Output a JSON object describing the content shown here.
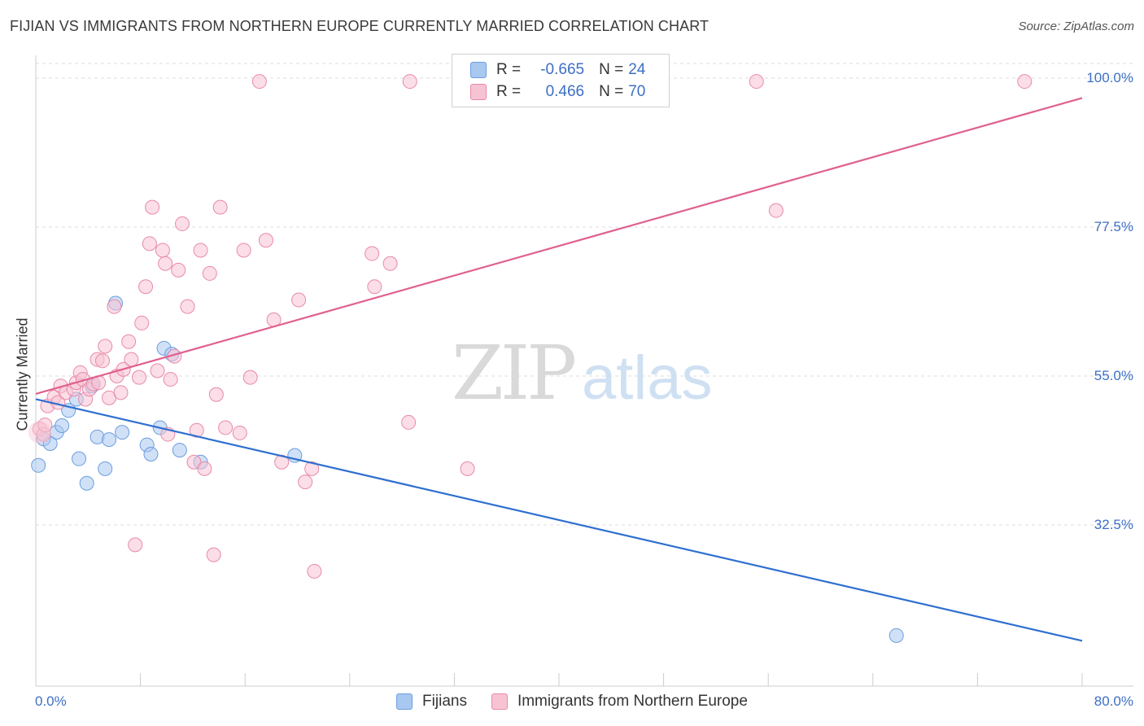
{
  "header": {
    "title": "FIJIAN VS IMMIGRANTS FROM NORTHERN EUROPE CURRENTLY MARRIED CORRELATION CHART",
    "source": "Source: ZipAtlas.com"
  },
  "watermark": {
    "zip": "ZIP",
    "atlas": "atlas"
  },
  "legend": {
    "rows": [
      {
        "r_label": "R =",
        "r_value": "-0.665",
        "n_label": "N =",
        "n_value": "24",
        "color": "#a9c8f0",
        "border": "#6b9de0"
      },
      {
        "r_label": "R =",
        "r_value": "0.466",
        "n_label": "N =",
        "n_value": "70",
        "color": "#f7c3d3",
        "border": "#e88aa8"
      }
    ]
  },
  "chart_data": {
    "type": "scatter",
    "title": "FIJIAN VS IMMIGRANTS FROM NORTHERN EUROPE CURRENTLY MARRIED CORRELATION CHART",
    "xlabel": "",
    "ylabel": "Currently Married",
    "xlim": [
      0,
      80
    ],
    "ylim": [
      10,
      100
    ],
    "x_tick_labels": [
      "0.0%",
      "80.0%"
    ],
    "y_ticks": [
      {
        "value": 100,
        "label": "100.0%"
      },
      {
        "value": 77.5,
        "label": "77.5%"
      },
      {
        "value": 55,
        "label": "55.0%"
      },
      {
        "value": 32.5,
        "label": "32.5%"
      }
    ],
    "grid": true,
    "legend_position": "top-center",
    "series": [
      {
        "name": "Fijians",
        "color": "#6b9de0",
        "fill": "#a9c8f0",
        "trend": {
          "x": [
            0,
            80
          ],
          "y": [
            51.5,
            15.0
          ]
        },
        "points": [
          [
            0.2,
            41.5
          ],
          [
            0.6,
            45.5
          ],
          [
            1.1,
            44.8
          ],
          [
            1.6,
            46.5
          ],
          [
            2.0,
            47.5
          ],
          [
            2.5,
            49.8
          ],
          [
            3.1,
            51.5
          ],
          [
            3.3,
            42.5
          ],
          [
            3.9,
            38.8
          ],
          [
            4.3,
            53.5
          ],
          [
            4.7,
            45.8
          ],
          [
            5.3,
            41.0
          ],
          [
            5.6,
            45.4
          ],
          [
            6.1,
            66.0
          ],
          [
            6.6,
            46.5
          ],
          [
            8.5,
            44.6
          ],
          [
            8.8,
            43.2
          ],
          [
            9.5,
            47.2
          ],
          [
            9.8,
            59.2
          ],
          [
            10.4,
            58.3
          ],
          [
            11.0,
            43.8
          ],
          [
            12.6,
            42.0
          ],
          [
            19.8,
            43.0
          ],
          [
            65.8,
            15.8
          ]
        ]
      },
      {
        "name": "Immigrants from Northern Europe",
        "color": "#e88aa8",
        "fill": "#f7c3d3",
        "trend": {
          "x": [
            0,
            80
          ],
          "y": [
            52.3,
            97.0
          ]
        },
        "points": [
          [
            0.3,
            47.0
          ],
          [
            0.6,
            46.2
          ],
          [
            0.7,
            47.6
          ],
          [
            0.9,
            50.5
          ],
          [
            1.4,
            51.8
          ],
          [
            1.7,
            51.0
          ],
          [
            1.9,
            53.5
          ],
          [
            2.3,
            52.5
          ],
          [
            2.9,
            53.0
          ],
          [
            3.1,
            54.0
          ],
          [
            3.4,
            55.5
          ],
          [
            3.6,
            54.5
          ],
          [
            3.8,
            51.5
          ],
          [
            4.1,
            53.0
          ],
          [
            4.4,
            53.8
          ],
          [
            4.7,
            57.5
          ],
          [
            4.8,
            54.0
          ],
          [
            5.1,
            57.3
          ],
          [
            5.3,
            59.5
          ],
          [
            5.6,
            51.7
          ],
          [
            6.0,
            65.5
          ],
          [
            6.2,
            55.0
          ],
          [
            6.5,
            52.5
          ],
          [
            6.7,
            56.0
          ],
          [
            7.1,
            60.2
          ],
          [
            7.3,
            57.5
          ],
          [
            7.6,
            29.5
          ],
          [
            7.9,
            54.8
          ],
          [
            8.1,
            63.0
          ],
          [
            8.4,
            68.5
          ],
          [
            8.7,
            75.0
          ],
          [
            8.9,
            80.5
          ],
          [
            9.3,
            55.8
          ],
          [
            9.7,
            74.0
          ],
          [
            9.9,
            72.0
          ],
          [
            10.1,
            46.2
          ],
          [
            10.3,
            54.5
          ],
          [
            10.6,
            58.0
          ],
          [
            10.9,
            71.0
          ],
          [
            11.2,
            78.0
          ],
          [
            11.6,
            65.5
          ],
          [
            12.1,
            42.0
          ],
          [
            12.3,
            46.8
          ],
          [
            12.6,
            74.0
          ],
          [
            12.9,
            41.0
          ],
          [
            13.3,
            70.5
          ],
          [
            13.6,
            28.0
          ],
          [
            13.8,
            52.2
          ],
          [
            14.1,
            80.5
          ],
          [
            14.5,
            47.2
          ],
          [
            15.6,
            46.4
          ],
          [
            15.9,
            74.0
          ],
          [
            16.4,
            54.8
          ],
          [
            17.6,
            75.5
          ],
          [
            18.2,
            63.5
          ],
          [
            18.8,
            42.0
          ],
          [
            20.1,
            66.5
          ],
          [
            20.6,
            39.0
          ],
          [
            21.1,
            41.0
          ],
          [
            21.3,
            25.5
          ],
          [
            17.1,
            99.5
          ],
          [
            28.6,
            99.5
          ],
          [
            25.7,
            73.5
          ],
          [
            25.9,
            68.5
          ],
          [
            27.1,
            72.0
          ],
          [
            28.5,
            48.0
          ],
          [
            33.0,
            41.0
          ],
          [
            55.1,
            99.5
          ],
          [
            56.6,
            80.0
          ],
          [
            75.6,
            99.5
          ]
        ]
      }
    ]
  },
  "bottom_legend": {
    "items": [
      {
        "label": "Fijians",
        "color": "#a9c8f0",
        "border": "#6b9de0"
      },
      {
        "label": "Immigrants from Northern Europe",
        "color": "#f7c3d3",
        "border": "#e88aa8"
      }
    ]
  }
}
